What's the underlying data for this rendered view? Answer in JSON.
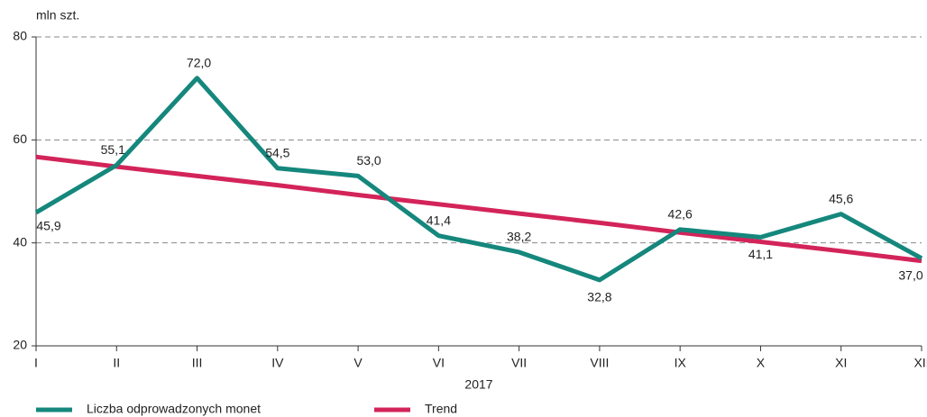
{
  "chart_data": {
    "type": "line",
    "y_label": "mln szt.",
    "x_label": "2017",
    "categories": [
      "I",
      "II",
      "III",
      "IV",
      "V",
      "VI",
      "VII",
      "VIII",
      "IX",
      "X",
      "XI",
      "XII"
    ],
    "series": [
      {
        "name": "Liczba odprowadzonych monet",
        "color": "#15877c",
        "values": [
          45.9,
          55.1,
          72.0,
          54.5,
          53.0,
          41.4,
          38.2,
          32.8,
          42.6,
          41.1,
          45.6,
          37.0
        ],
        "value_labels": [
          "45,9",
          "55,1",
          "72,0",
          "54,5",
          "53,0",
          "41,4",
          "38,2",
          "32,8",
          "42,6",
          "41,1",
          "45,6",
          "37,0"
        ]
      },
      {
        "name": "Trend",
        "color": "#d3245a",
        "values": [
          56.7,
          54.8,
          53.0,
          51.2,
          49.3,
          47.5,
          45.7,
          43.9,
          42.0,
          40.2,
          38.4,
          36.5
        ]
      }
    ],
    "ylim": [
      20,
      80
    ],
    "yticks": [
      20,
      40,
      60,
      80
    ],
    "grid": true,
    "legend": "bottom"
  }
}
